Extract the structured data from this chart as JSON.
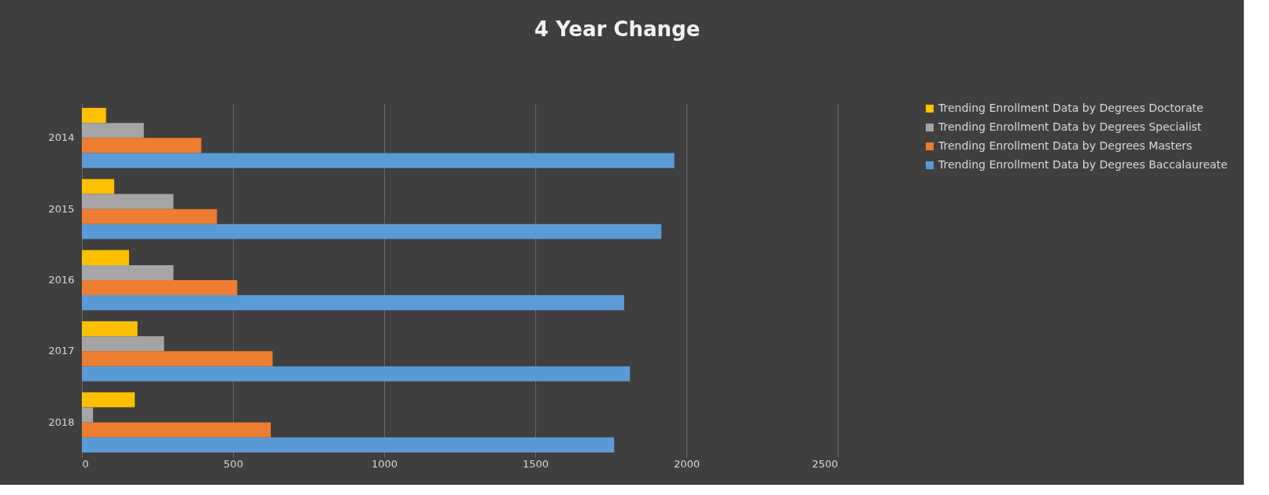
{
  "chart_data": {
    "type": "bar",
    "title": "4 Year Change",
    "orientation": "horizontal",
    "categories": [
      "2014",
      "2015",
      "2016",
      "2017",
      "2018"
    ],
    "series": [
      {
        "name": "Trending Enrollment Data by Degrees Doctorate",
        "color": "#ffc000",
        "values": [
          80,
          107,
          156,
          184,
          175
        ]
      },
      {
        "name": "Trending Enrollment Data by Degrees Specialist",
        "color": "#a5a5a5",
        "values": [
          205,
          303,
          303,
          272,
          37
        ]
      },
      {
        "name": "Trending Enrollment Data by Degrees Masters",
        "color": "#ed7d31",
        "values": [
          395,
          447,
          514,
          631,
          625
        ]
      },
      {
        "name": "Trending Enrollment Data by Degrees Baccalaureate",
        "color": "#5b9bd5",
        "values": [
          1960,
          1917,
          1794,
          1813,
          1761
        ]
      }
    ],
    "xlim": [
      0,
      2500
    ],
    "xticks": [
      0,
      500,
      1000,
      1500,
      2000,
      2500
    ],
    "grid": "x",
    "legend": "right"
  }
}
